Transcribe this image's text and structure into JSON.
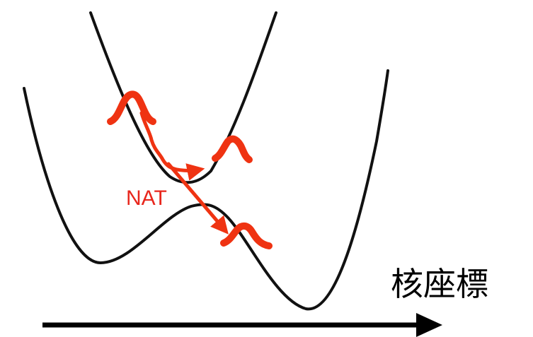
{
  "diagram": {
    "nat_label": "NAT",
    "axis_label": "核座標",
    "colors": {
      "curve": "#111111",
      "arrow_axis": "#000000",
      "wavepacket": "#ef3312",
      "label_red": "#e8261c"
    }
  }
}
